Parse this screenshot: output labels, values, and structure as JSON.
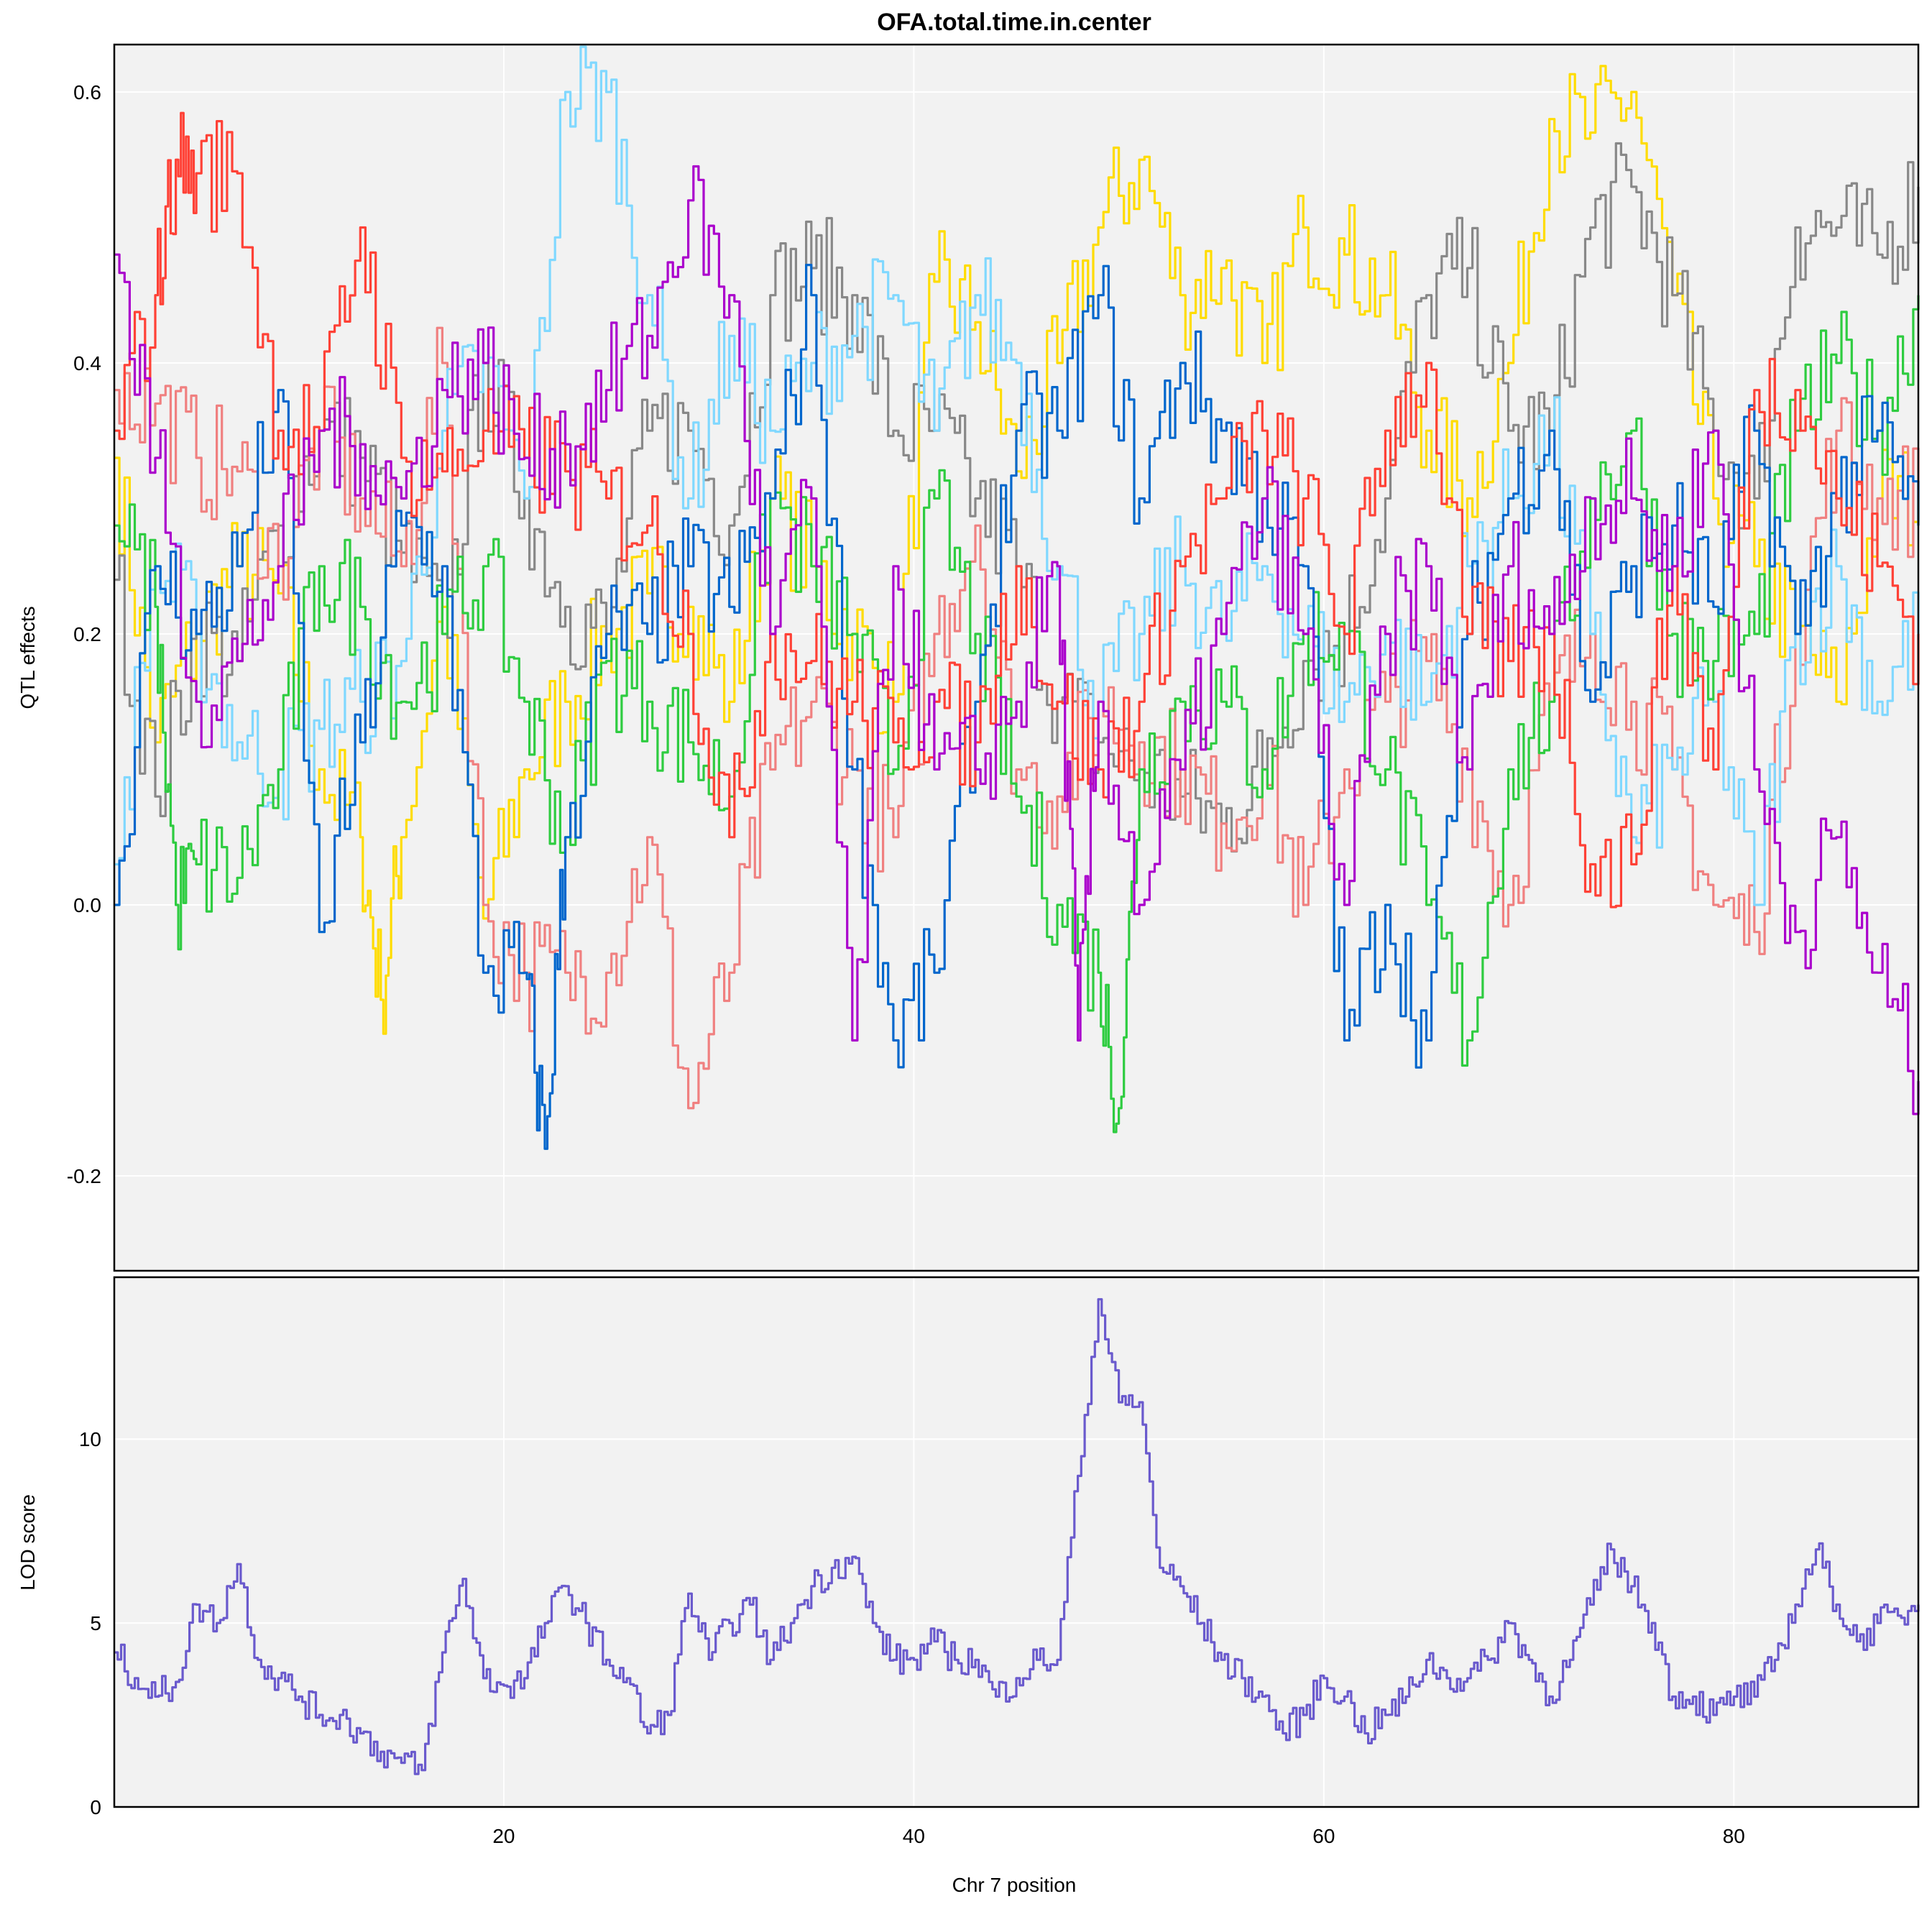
{
  "chart_data": [
    {
      "panel": "effects",
      "type": "line",
      "title": "OFA.total.time.in.center",
      "ylabel": "QTL effects",
      "xlabel": "",
      "xlim": [
        1,
        89
      ],
      "ylim": [
        -0.27,
        0.635
      ],
      "yticks": [
        -0.2,
        0.0,
        0.2,
        0.4,
        0.6
      ],
      "ytick_labels": [
        "-0.2",
        "0.0",
        "0.2",
        "0.4",
        "0.6"
      ],
      "xticks": [
        20,
        40,
        60,
        80
      ],
      "grid": true,
      "legend": "none",
      "series": [
        {
          "color": "#FFDC00",
          "x": [
            1,
            3,
            5,
            7,
            9,
            11,
            13,
            14,
            15,
            17,
            19,
            21,
            23,
            25,
            27,
            29,
            31,
            33,
            35,
            37,
            39,
            41,
            43,
            45,
            47,
            49,
            51,
            53,
            55,
            57,
            59,
            61,
            63,
            65,
            67,
            69,
            71,
            73,
            75,
            77,
            79,
            81,
            83,
            85,
            87,
            89
          ],
          "y": [
            0.33,
            0.12,
            0.2,
            0.25,
            0.23,
            0.1,
            0.05,
            -0.07,
            0.05,
            0.22,
            -0.01,
            0.1,
            0.15,
            0.2,
            0.23,
            0.22,
            0.15,
            0.3,
            0.25,
            0.2,
            0.15,
            0.46,
            0.43,
            0.32,
            0.4,
            0.5,
            0.55,
            0.45,
            0.47,
            0.4,
            0.5,
            0.48,
            0.45,
            0.35,
            0.3,
            0.4,
            0.58,
            0.57,
            0.6,
            0.45,
            0.3,
            0.25,
            0.2,
            0.15,
            0.3,
            0.3
          ]
        },
        {
          "color": "#888888",
          "x": [
            1,
            3,
            5,
            7,
            9,
            11,
            13,
            15,
            17,
            19,
            21,
            23,
            25,
            27,
            29,
            31,
            33,
            35,
            37,
            39,
            41,
            43,
            45,
            47,
            49,
            51,
            53,
            55,
            57,
            59,
            61,
            63,
            65,
            67,
            69,
            71,
            73,
            75,
            77,
            79,
            81,
            83,
            85,
            87,
            89
          ],
          "y": [
            0.24,
            0.08,
            0.2,
            0.18,
            0.28,
            0.35,
            0.33,
            0.26,
            0.2,
            0.4,
            0.3,
            0.22,
            0.2,
            0.35,
            0.35,
            0.28,
            0.45,
            0.47,
            0.45,
            0.35,
            0.35,
            0.3,
            0.25,
            0.15,
            0.12,
            0.1,
            0.08,
            0.06,
            0.1,
            0.18,
            0.2,
            0.3,
            0.45,
            0.47,
            0.35,
            0.35,
            0.5,
            0.53,
            0.45,
            0.35,
            0.3,
            0.5,
            0.5,
            0.48,
            0.53
          ]
        },
        {
          "color": "#F08080",
          "x": [
            1,
            3,
            5,
            7,
            9,
            11,
            13,
            15,
            17,
            19,
            21,
            23,
            25,
            27,
            29,
            31,
            33,
            35,
            37,
            39,
            41,
            43,
            45,
            47,
            49,
            51,
            53,
            55,
            57,
            59,
            61,
            63,
            65,
            67,
            69,
            71,
            73,
            75,
            77,
            79,
            81,
            83,
            85,
            87,
            89
          ],
          "y": [
            0.38,
            0.37,
            0.33,
            0.32,
            0.25,
            0.35,
            0.3,
            0.25,
            0.4,
            0.0,
            -0.05,
            -0.05,
            -0.05,
            0.05,
            -0.15,
            -0.05,
            0.1,
            0.15,
            0.1,
            0.05,
            0.2,
            0.28,
            0.1,
            0.08,
            0.15,
            0.12,
            0.1,
            0.06,
            0.1,
            0.0,
            0.1,
            0.15,
            0.18,
            0.1,
            0.0,
            0.15,
            0.2,
            0.15,
            0.1,
            0.0,
            -0.02,
            0.2,
            0.35,
            0.3,
            0.3
          ]
        },
        {
          "color": "#80D8FF",
          "x": [
            1,
            3,
            5,
            7,
            9,
            11,
            13,
            15,
            17,
            19,
            21,
            23,
            25,
            27,
            29,
            31,
            33,
            35,
            37,
            39,
            41,
            43,
            45,
            47,
            49,
            51,
            53,
            55,
            57,
            59,
            61,
            63,
            65,
            67,
            69,
            71,
            73,
            75,
            77,
            79,
            81,
            83,
            85,
            87,
            89
          ],
          "y": [
            0.03,
            0.25,
            0.2,
            0.12,
            0.1,
            0.13,
            0.15,
            0.18,
            0.35,
            0.4,
            0.3,
            0.6,
            0.6,
            0.45,
            0.3,
            0.42,
            0.35,
            0.4,
            0.42,
            0.45,
            0.35,
            0.45,
            0.4,
            0.25,
            0.15,
            0.2,
            0.25,
            0.2,
            0.25,
            0.2,
            0.15,
            0.2,
            0.15,
            0.25,
            0.3,
            0.35,
            0.2,
            0.05,
            0.1,
            0.15,
            0.0,
            0.2,
            0.25,
            0.15,
            0.2
          ]
        },
        {
          "color": "#2ECC40",
          "x": [
            1,
            3,
            4,
            5,
            7,
            9,
            11,
            13,
            15,
            17,
            19,
            21,
            23,
            25,
            27,
            29,
            31,
            33,
            35,
            37,
            39,
            41,
            43,
            45,
            47,
            49,
            50,
            51,
            53,
            55,
            57,
            59,
            61,
            63,
            65,
            67,
            69,
            71,
            73,
            75,
            77,
            79,
            81,
            83,
            85,
            87,
            89
          ],
          "y": [
            0.28,
            0.22,
            0.0,
            0.03,
            0.02,
            0.1,
            0.25,
            0.22,
            0.15,
            0.2,
            0.25,
            0.15,
            0.05,
            0.18,
            0.15,
            0.12,
            0.08,
            0.3,
            0.25,
            0.2,
            0.1,
            0.3,
            0.2,
            0.08,
            0.0,
            -0.05,
            -0.15,
            0.1,
            0.15,
            0.15,
            0.1,
            0.2,
            0.2,
            0.1,
            0.0,
            -0.1,
            0.1,
            0.15,
            0.3,
            0.35,
            0.2,
            0.18,
            0.2,
            0.35,
            0.4,
            0.35,
            0.45
          ]
        },
        {
          "color": "#0066CC",
          "x": [
            1,
            3,
            5,
            7,
            9,
            11,
            13,
            15,
            17,
            19,
            21,
            22,
            23,
            25,
            27,
            29,
            31,
            33,
            35,
            37,
            39,
            41,
            43,
            45,
            47,
            49,
            51,
            53,
            55,
            57,
            59,
            61,
            63,
            65,
            67,
            69,
            71,
            73,
            75,
            77,
            79,
            81,
            83,
            85,
            87,
            89
          ],
          "y": [
            0.0,
            0.25,
            0.2,
            0.25,
            0.38,
            -0.02,
            0.12,
            0.28,
            0.25,
            -0.05,
            -0.05,
            -0.18,
            0.05,
            0.2,
            0.2,
            0.25,
            0.22,
            0.3,
            0.45,
            0.1,
            -0.1,
            -0.05,
            0.15,
            0.35,
            0.35,
            0.45,
            0.3,
            0.4,
            0.35,
            0.3,
            0.25,
            -0.1,
            0.0,
            -0.1,
            0.2,
            0.3,
            0.35,
            0.15,
            0.25,
            0.28,
            0.22,
            0.35,
            0.2,
            0.3,
            0.35,
            0.28
          ]
        },
        {
          "color": "#FF4136",
          "x": [
            1,
            3,
            4,
            5,
            7,
            9,
            11,
            13,
            15,
            17,
            19,
            21,
            23,
            25,
            27,
            29,
            31,
            33,
            35,
            37,
            39,
            41,
            43,
            45,
            47,
            49,
            51,
            53,
            55,
            57,
            59,
            61,
            63,
            65,
            67,
            69,
            71,
            73,
            75,
            77,
            79,
            81,
            83,
            85,
            87,
            89
          ],
          "y": [
            0.35,
            0.45,
            0.55,
            0.54,
            0.54,
            0.35,
            0.35,
            0.5,
            0.33,
            0.32,
            0.35,
            0.33,
            0.32,
            0.3,
            0.28,
            0.2,
            0.05,
            0.2,
            0.18,
            0.15,
            0.12,
            0.15,
            0.12,
            0.25,
            0.15,
            0.1,
            0.15,
            0.25,
            0.3,
            0.35,
            0.3,
            0.2,
            0.35,
            0.4,
            0.2,
            0.18,
            0.2,
            0.03,
            0.03,
            0.25,
            0.1,
            0.38,
            0.38,
            0.3,
            0.25,
            0.2
          ]
        },
        {
          "color": "#AA00CC",
          "x": [
            1,
            3,
            5,
            7,
            9,
            11,
            13,
            15,
            17,
            19,
            21,
            23,
            25,
            27,
            29,
            31,
            33,
            35,
            37,
            39,
            41,
            43,
            45,
            47,
            48,
            49,
            51,
            53,
            55,
            57,
            59,
            61,
            63,
            65,
            67,
            69,
            71,
            73,
            75,
            77,
            79,
            81,
            83,
            85,
            87,
            89
          ],
          "y": [
            0.48,
            0.33,
            0.15,
            0.18,
            0.25,
            0.35,
            0.34,
            0.3,
            0.38,
            0.4,
            0.33,
            0.34,
            0.38,
            0.42,
            0.52,
            0.45,
            0.2,
            0.3,
            -0.1,
            0.25,
            0.1,
            0.1,
            0.15,
            0.25,
            -0.1,
            0.15,
            0.0,
            0.1,
            0.2,
            0.3,
            0.2,
            0.0,
            0.2,
            0.25,
            0.1,
            0.25,
            0.2,
            0.3,
            0.3,
            0.25,
            0.35,
            0.1,
            -0.02,
            0.05,
            -0.05,
            -0.13
          ]
        }
      ]
    },
    {
      "panel": "lod",
      "type": "line",
      "title": "",
      "ylabel": "LOD score",
      "xlabel": "Chr 7 position",
      "xlim": [
        1,
        89
      ],
      "ylim": [
        0,
        14.4
      ],
      "yticks": [
        0,
        5,
        10
      ],
      "ytick_labels": [
        "0",
        "5",
        "10"
      ],
      "xticks": [
        20,
        40,
        60,
        80
      ],
      "xtick_labels": [
        "20",
        "40",
        "60",
        "80"
      ],
      "grid": true,
      "legend": "none",
      "series": [
        {
          "color": "#6A5ACD",
          "x": [
            1,
            2,
            3,
            4,
            5,
            6,
            7,
            8,
            9,
            10,
            11,
            12,
            13,
            14,
            15,
            16,
            17,
            18,
            19,
            20,
            21,
            22,
            23,
            24,
            25,
            26,
            27,
            28,
            29,
            30,
            31,
            32,
            33,
            34,
            35,
            36,
            37,
            38,
            39,
            40,
            41,
            42,
            43,
            44,
            45,
            46,
            47,
            48,
            49,
            50,
            51,
            52,
            53,
            54,
            55,
            56,
            57,
            58,
            59,
            60,
            61,
            62,
            63,
            64,
            65,
            66,
            67,
            68,
            69,
            70,
            71,
            72,
            73,
            74,
            75,
            76,
            77,
            78,
            79,
            80,
            81,
            82,
            83,
            84,
            85,
            86,
            87,
            88,
            89
          ],
          "y": [
            4.2,
            3.5,
            3.0,
            3.4,
            5.5,
            5.0,
            6.6,
            4.0,
            3.5,
            3.0,
            2.5,
            2.5,
            2.0,
            1.5,
            1.2,
            1.0,
            4.2,
            6.2,
            3.5,
            3.3,
            3.5,
            5.0,
            6.0,
            5.0,
            4.0,
            3.5,
            2.0,
            2.5,
            5.8,
            4.0,
            5.0,
            5.5,
            4.0,
            5.0,
            6.0,
            6.5,
            6.8,
            5.0,
            4.0,
            4.0,
            4.5,
            4.0,
            4.0,
            3.0,
            3.5,
            4.0,
            4.0,
            9.0,
            13.8,
            11.0,
            11.0,
            6.5,
            6.0,
            5.0,
            4.0,
            3.5,
            3.0,
            2.0,
            2.5,
            3.5,
            3.0,
            2.0,
            2.5,
            3.0,
            4.0,
            3.5,
            3.5,
            4.0,
            5.0,
            4.0,
            3.0,
            4.0,
            5.5,
            7.0,
            6.0,
            5.0,
            3.0,
            3.0,
            2.5,
            3.0,
            3.0,
            4.0,
            5.5,
            7.0,
            5.5,
            4.5,
            5.0,
            5.2,
            5.5
          ]
        }
      ]
    }
  ]
}
